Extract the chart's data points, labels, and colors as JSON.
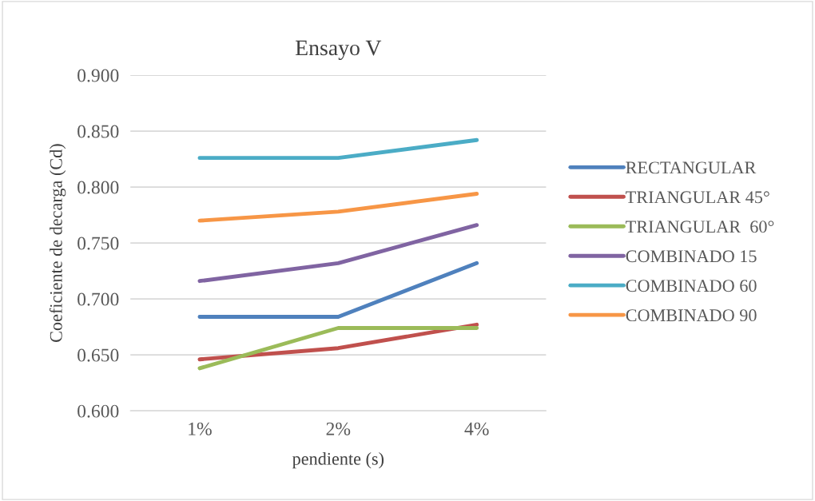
{
  "chart_data": {
    "type": "line",
    "title": "Ensayo V",
    "xlabel": "pendiente (s)",
    "ylabel": "Coeficiente de decarga (Cd)",
    "categories": [
      "1%",
      "2%",
      "4%"
    ],
    "ylim": [
      0.6,
      0.9
    ],
    "yticks": [
      {
        "value": 0.6,
        "label": "0.600"
      },
      {
        "value": 0.65,
        "label": "0.650"
      },
      {
        "value": 0.7,
        "label": "0.700"
      },
      {
        "value": 0.75,
        "label": "0.750"
      },
      {
        "value": 0.8,
        "label": "0.800"
      },
      {
        "value": 0.85,
        "label": "0.850"
      },
      {
        "value": 0.9,
        "label": "0.900"
      }
    ],
    "grid": "y",
    "legend": "right",
    "marker": "none",
    "line_style": "solid",
    "series": [
      {
        "name": "RECTANGULAR",
        "color": "#4f81bd",
        "values": [
          0.684,
          0.684,
          0.732
        ]
      },
      {
        "name": "TRIANGULAR 45°",
        "color": "#c0504d",
        "values": [
          0.646,
          0.656,
          0.677
        ]
      },
      {
        "name": "TRIANGULAR  60°",
        "color": "#9bbb59",
        "values": [
          0.638,
          0.674,
          0.674
        ]
      },
      {
        "name": "COMBINADO 15",
        "color": "#8064a2",
        "values": [
          0.716,
          0.732,
          0.766
        ]
      },
      {
        "name": "COMBINADO 60",
        "color": "#4bacc6",
        "values": [
          0.826,
          0.826,
          0.842
        ]
      },
      {
        "name": "COMBINADO 90",
        "color": "#f79646",
        "values": [
          0.77,
          0.778,
          0.794
        ]
      }
    ]
  }
}
